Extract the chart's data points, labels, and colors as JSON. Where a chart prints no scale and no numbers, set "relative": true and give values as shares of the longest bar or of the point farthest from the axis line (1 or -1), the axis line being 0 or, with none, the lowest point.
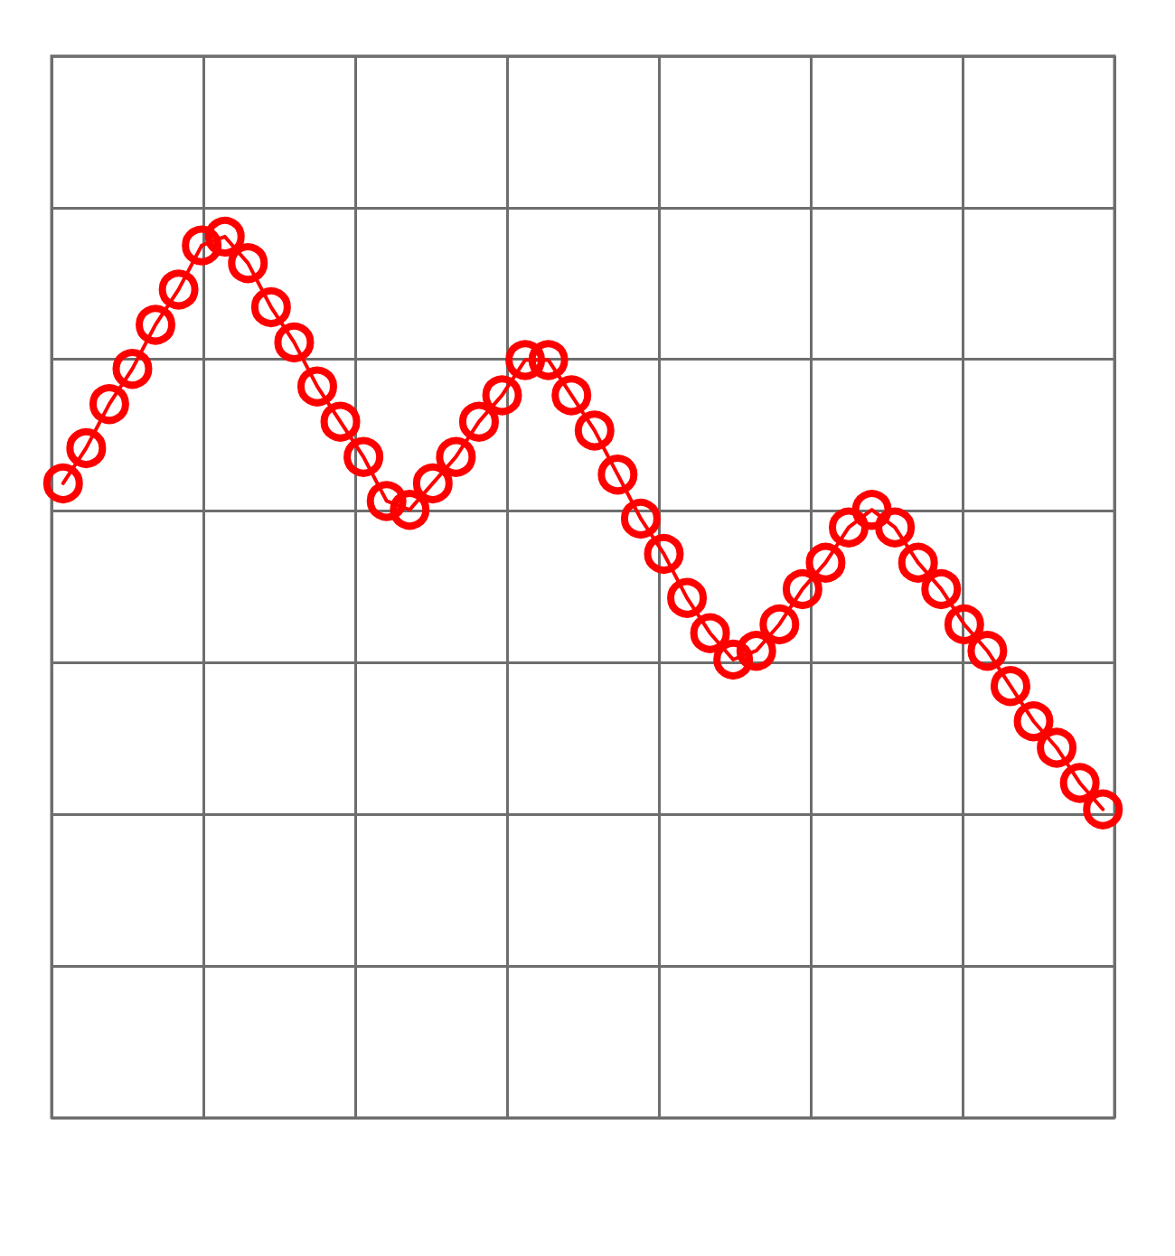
{
  "chart_data": {
    "type": "line",
    "relative": true,
    "marker": "circle",
    "grid": true,
    "color": "#ff0000",
    "categories": [
      null,
      null,
      null,
      null,
      null,
      null,
      null,
      null,
      null,
      null,
      null,
      null,
      null,
      null,
      null,
      null,
      null,
      null,
      null,
      null,
      null,
      null,
      null,
      null,
      null,
      null,
      null,
      null,
      null,
      null,
      null,
      null,
      null,
      null,
      null,
      null,
      null,
      null,
      null,
      null,
      null,
      null,
      null,
      null,
      null,
      null
    ],
    "values": [
      0.72,
      0.76,
      0.81,
      0.85,
      0.9,
      0.94,
      0.99,
      1.0,
      0.97,
      0.92,
      0.88,
      0.83,
      0.79,
      0.75,
      0.7,
      0.69,
      0.72,
      0.75,
      0.79,
      0.82,
      0.86,
      0.86,
      0.82,
      0.78,
      0.73,
      0.68,
      0.64,
      0.59,
      0.55,
      0.52,
      0.53,
      0.56,
      0.6,
      0.63,
      0.67,
      0.69,
      0.67,
      0.63,
      0.6,
      0.56,
      0.53,
      0.49,
      0.45,
      0.42,
      0.38,
      0.35
    ]
  }
}
